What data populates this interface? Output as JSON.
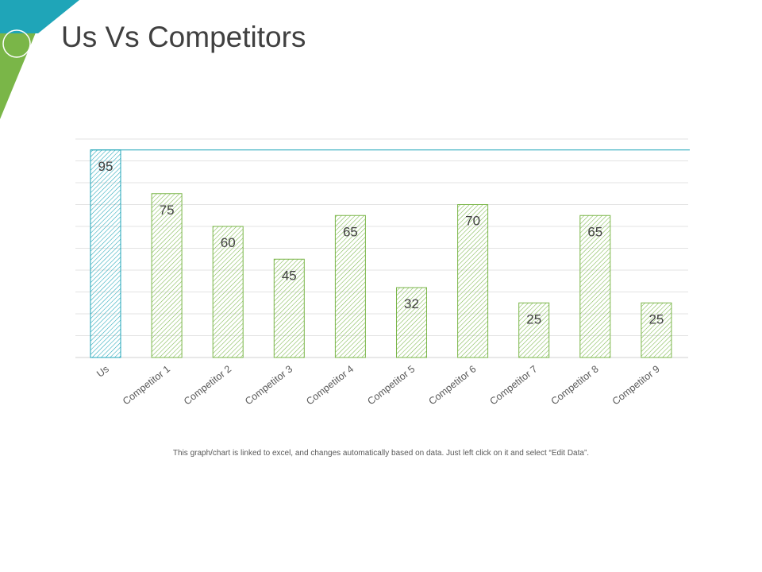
{
  "slide": {
    "title": "Us Vs Competitors",
    "footnote": "This graph/chart is linked to excel, and changes automatically based on data. Just left click on it and select “Edit Data”."
  },
  "colors": {
    "teal": "#1fa5b8",
    "green": "#7ab648",
    "gridline": "#e3e3e3",
    "text": "#404040"
  },
  "chart_data": {
    "type": "bar",
    "categories": [
      "Us",
      "Competitor 1",
      "Competitor 2",
      "Competitor 3",
      "Competitor 4",
      "Competitor 5",
      "Competitor 6",
      "Competitor 7",
      "Competitor 8",
      "Competitor 9"
    ],
    "values": [
      95,
      75,
      60,
      45,
      65,
      32,
      70,
      25,
      65,
      25
    ],
    "highlight": "Us",
    "reference_line": 95,
    "ylim": [
      0,
      100
    ],
    "grid": true,
    "bar_fill": "diagonal hatch",
    "data_labels": true
  }
}
